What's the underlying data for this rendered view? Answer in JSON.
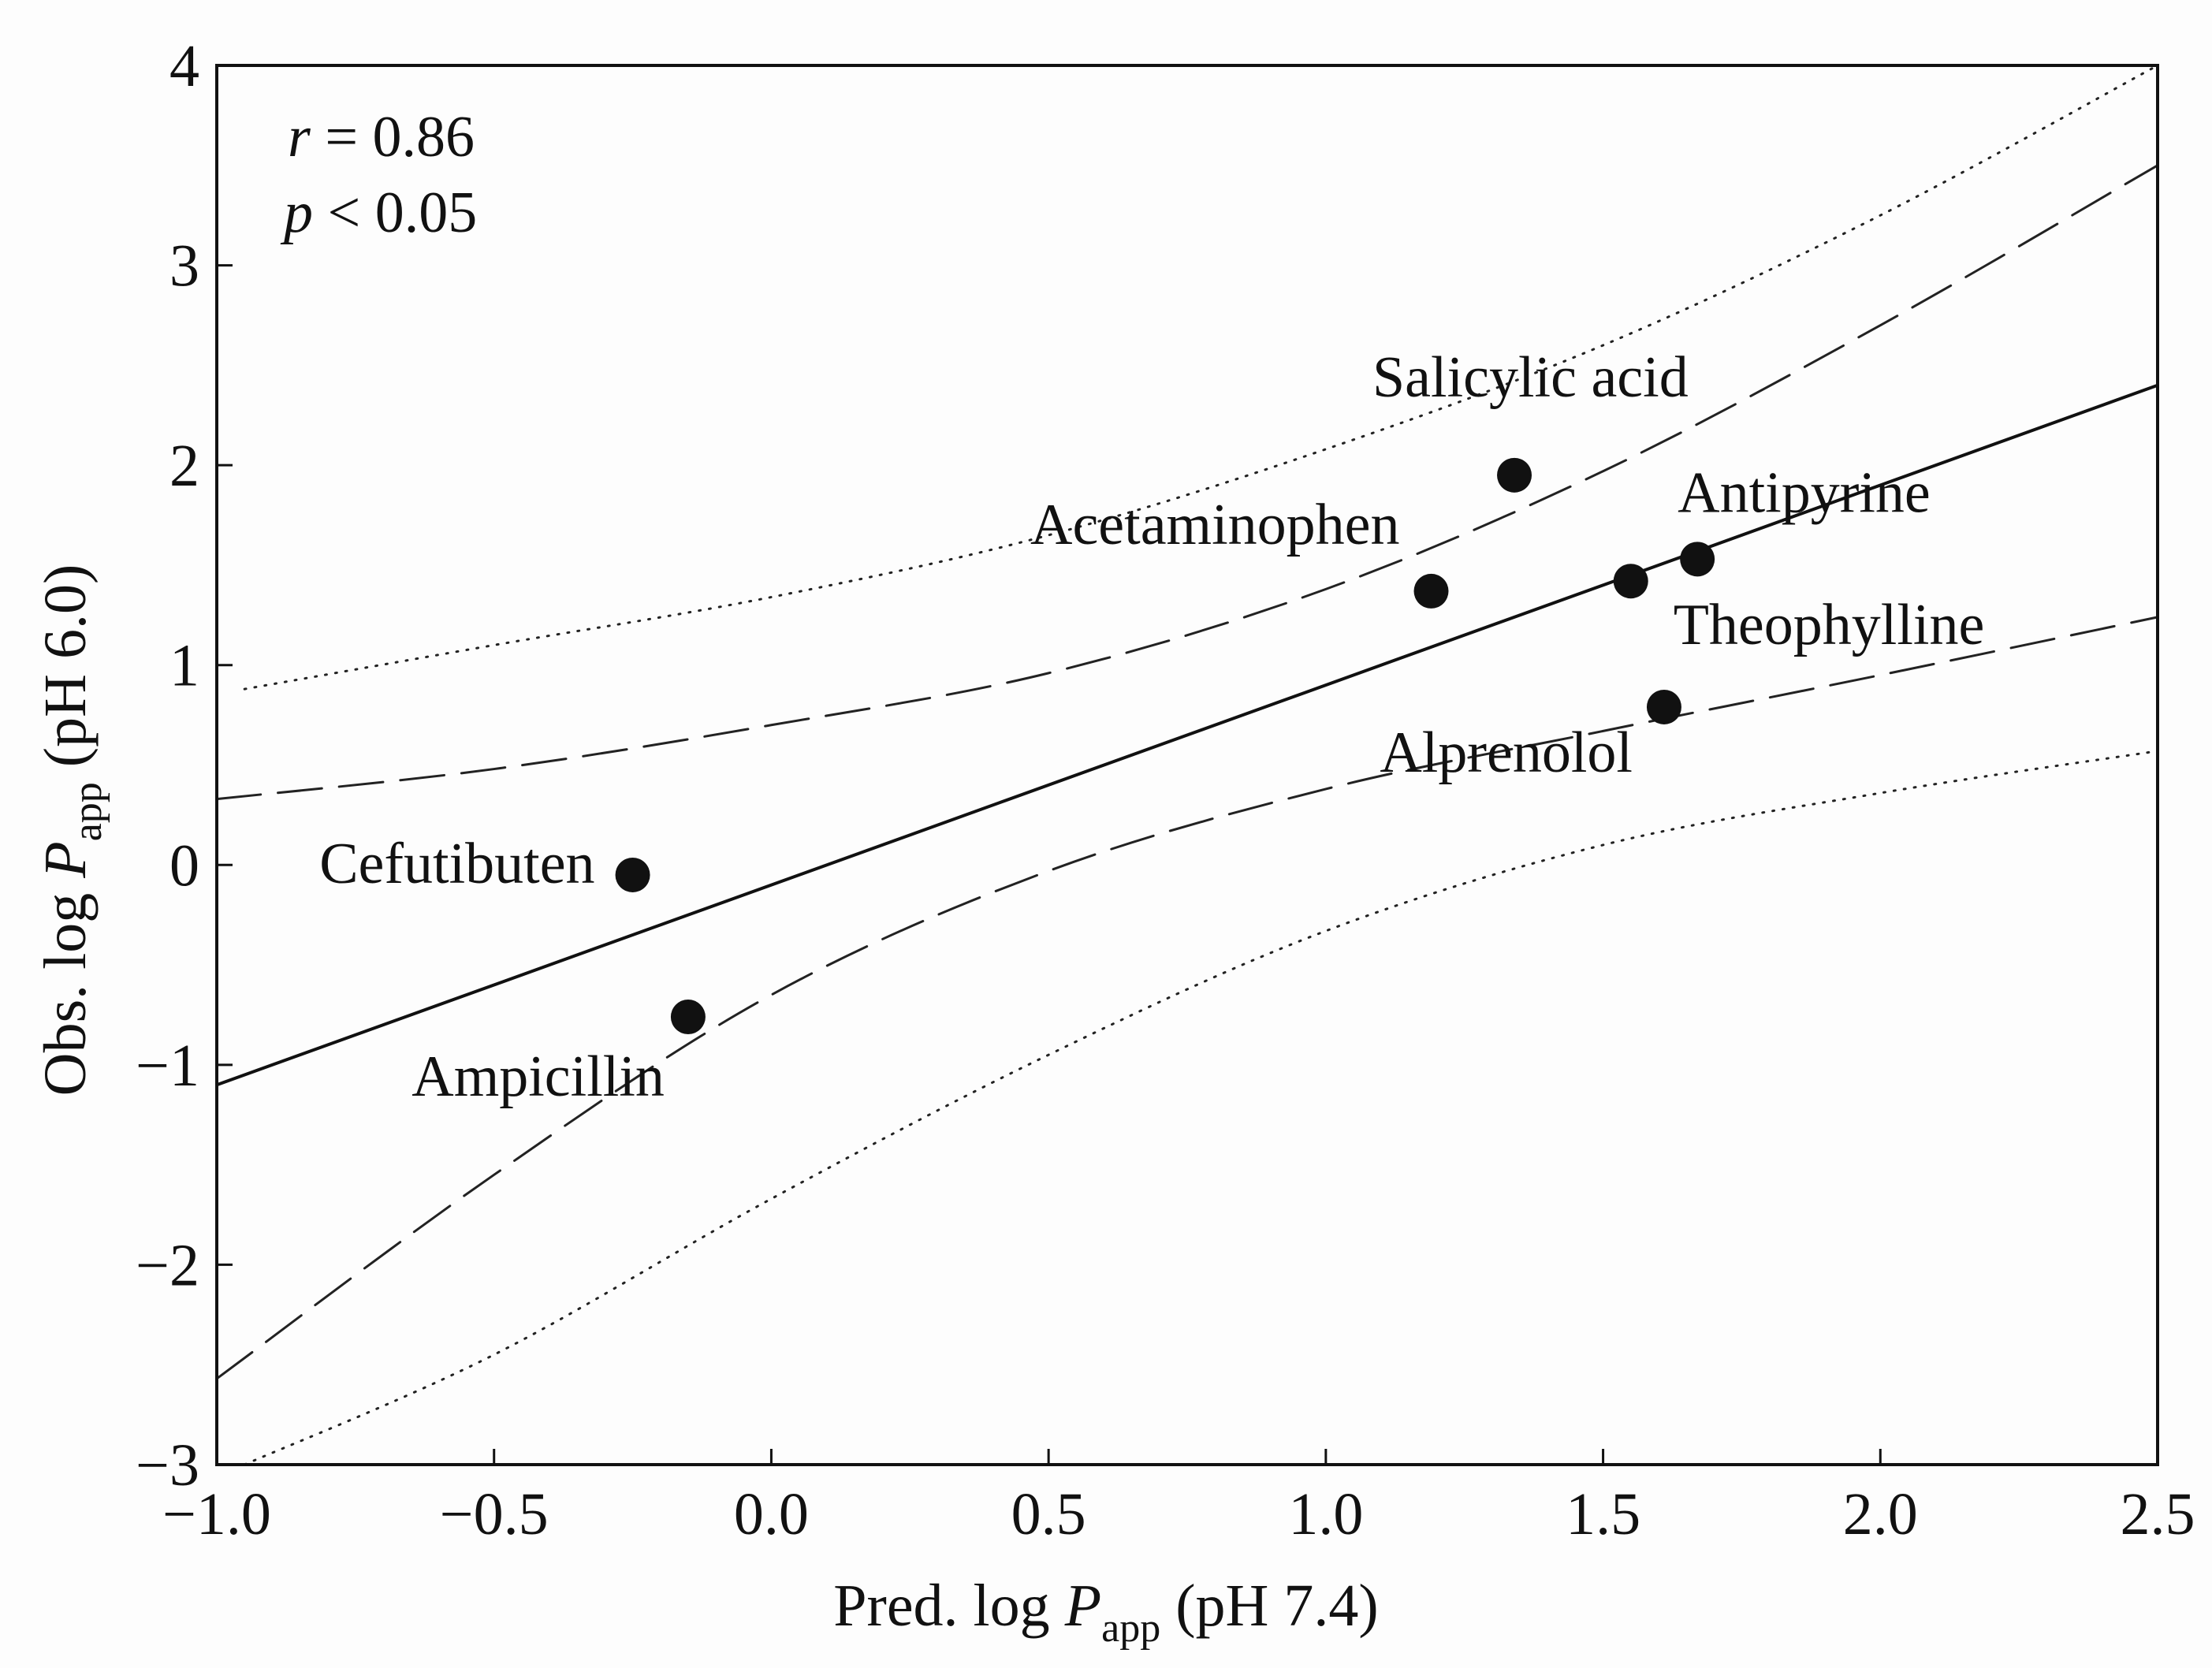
{
  "chart_data": {
    "type": "scatter",
    "xlabel": {
      "prefix": "Pred. log ",
      "var": "P",
      "sub": "app",
      "suffix": " (pH 7.4)"
    },
    "ylabel": {
      "prefix": "Obs. log ",
      "var": "P",
      "sub": "app",
      "suffix": " (pH 6.0)"
    },
    "xlim": [
      -1.0,
      2.5
    ],
    "ylim": [
      -3,
      4
    ],
    "xticks": [
      -1.0,
      -0.5,
      0.0,
      0.5,
      1.0,
      1.5,
      2.0,
      2.5
    ],
    "xtick_labels": [
      "−1.0",
      "−0.5",
      "0.0",
      "0.5",
      "1.0",
      "1.5",
      "2.0",
      "2.5"
    ],
    "yticks": [
      -3,
      -2,
      -1,
      0,
      1,
      2,
      3,
      4
    ],
    "ytick_labels": [
      "−3",
      "−2",
      "−1",
      "0",
      "1",
      "2",
      "3",
      "4"
    ],
    "stats": {
      "r_var": "r",
      "r_text": " = 0.86",
      "p_var": "p",
      "p_text": " < 0.05"
    },
    "points": [
      {
        "name": "Cefutibuten",
        "x": -0.25,
        "y": -0.05
      },
      {
        "name": "Ampicillin",
        "x": -0.15,
        "y": -0.76
      },
      {
        "name": "Acetaminophen",
        "x": 1.19,
        "y": 1.37
      },
      {
        "name": "Salicylic acid",
        "x": 1.34,
        "y": 1.95
      },
      {
        "name": "Theophylline",
        "x": 1.55,
        "y": 1.42
      },
      {
        "name": "Antipyrine",
        "x": 1.67,
        "y": 1.53
      },
      {
        "name": "Alprenolol",
        "x": 1.61,
        "y": 0.79
      }
    ],
    "regression": {
      "slope": 1.0,
      "intercept": -0.1
    },
    "confidence_band": [
      {
        "x": -1.0,
        "lower": -2.57,
        "upper": 0.33
      },
      {
        "x": -0.5,
        "lower": -1.55,
        "upper": 0.48
      },
      {
        "x": 0.0,
        "lower": -0.65,
        "upper": 0.7
      },
      {
        "x": 0.5,
        "lower": -0.03,
        "upper": 0.96
      },
      {
        "x": 1.0,
        "lower": 0.38,
        "upper": 1.38
      },
      {
        "x": 1.5,
        "lower": 0.67,
        "upper": 1.97
      },
      {
        "x": 2.0,
        "lower": 0.95,
        "upper": 2.7
      },
      {
        "x": 2.5,
        "lower": 1.24,
        "upper": 3.5
      }
    ],
    "prediction_band": [
      {
        "x": -0.95,
        "lower": -3.3,
        "upper": 0.88
      },
      {
        "x": -0.5,
        "lower": -2.45,
        "upper": 1.1
      },
      {
        "x": 0.0,
        "lower": -1.67,
        "upper": 1.34
      },
      {
        "x": 0.5,
        "lower": -0.95,
        "upper": 1.65
      },
      {
        "x": 1.0,
        "lower": -0.33,
        "upper": 2.08
      },
      {
        "x": 1.5,
        "lower": 0.1,
        "upper": 2.6
      },
      {
        "x": 2.0,
        "lower": 0.36,
        "upper": 3.25
      },
      {
        "x": 2.5,
        "lower": 0.57,
        "upper": 4.0
      }
    ]
  }
}
